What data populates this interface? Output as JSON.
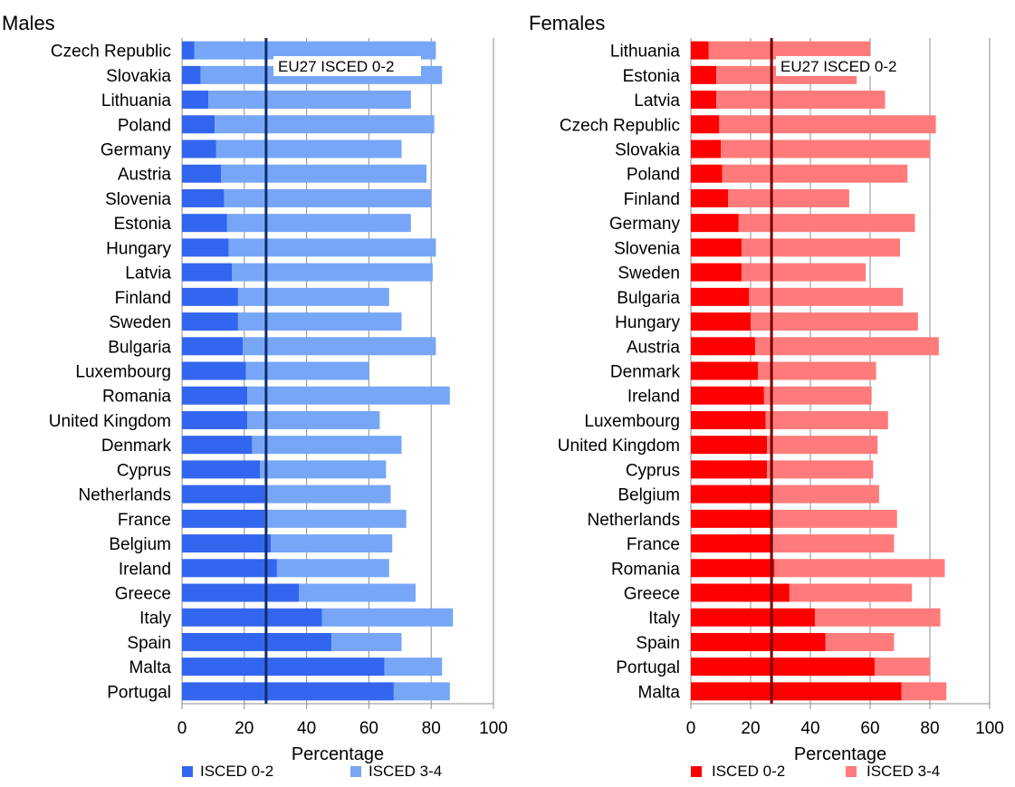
{
  "chart_data": [
    {
      "type": "bar",
      "orientation": "horizontal",
      "stacked": true,
      "title": "Males",
      "xlabel": "Percentage",
      "xlim": [
        0,
        100
      ],
      "xticks": [
        0,
        20,
        40,
        60,
        80,
        100
      ],
      "grid": true,
      "legend_position": "bottom",
      "categories": [
        "Czech Republic",
        "Slovakia",
        "Lithuania",
        "Poland",
        "Germany",
        "Austria",
        "Slovenia",
        "Estonia",
        "Hungary",
        "Latvia",
        "Finland",
        "Sweden",
        "Bulgaria",
        "Luxembourg",
        "Romania",
        "United Kingdom",
        "Denmark",
        "Cyprus",
        "Netherlands",
        "France",
        "Belgium",
        "Ireland",
        "Greece",
        "Italy",
        "Spain",
        "Malta",
        "Portugal"
      ],
      "series": [
        {
          "name": "ISCED 0-2",
          "color": "#3366ee",
          "values": [
            4,
            6,
            8.5,
            10.5,
            11,
            12.5,
            13.5,
            14.5,
            15,
            16,
            18,
            18,
            19.5,
            20.5,
            21,
            21,
            22.5,
            25,
            26.5,
            26.5,
            28.5,
            30.5,
            37.5,
            45,
            48,
            65,
            68
          ]
        },
        {
          "name": "ISCED 3-4",
          "color": "#77a6f7",
          "values": [
            77.5,
            77.5,
            65,
            70.5,
            59.5,
            66,
            66.5,
            59,
            66.5,
            64.5,
            48.5,
            52.5,
            62,
            39.5,
            65,
            42.5,
            48,
            40.5,
            40.5,
            45.5,
            39,
            36,
            37.5,
            42,
            22.5,
            18.5,
            18
          ]
        }
      ],
      "reference_line": {
        "label": "EU27 ISCED 0-2",
        "value": 27,
        "color": "#0d2e6b"
      }
    },
    {
      "type": "bar",
      "orientation": "horizontal",
      "stacked": true,
      "title": "Females",
      "xlabel": "Percentage",
      "xlim": [
        0,
        100
      ],
      "xticks": [
        0,
        20,
        40,
        60,
        80,
        100
      ],
      "grid": true,
      "legend_position": "bottom",
      "categories": [
        "Lithuania",
        "Estonia",
        "Latvia",
        "Czech Republic",
        "Slovakia",
        "Poland",
        "Finland",
        "Germany",
        "Slovenia",
        "Sweden",
        "Bulgaria",
        "Hungary",
        "Austria",
        "Denmark",
        "Ireland",
        "Luxembourg",
        "United Kingdom",
        "Cyprus",
        "Belgium",
        "Netherlands",
        "France",
        "Romania",
        "Greece",
        "Italy",
        "Spain",
        "Portugal",
        "Malta"
      ],
      "series": [
        {
          "name": "ISCED 0-2",
          "color": "#ff0000",
          "values": [
            6,
            8.5,
            8.5,
            9.5,
            10,
            10.5,
            12.5,
            16,
            17,
            17,
            19.5,
            20,
            21.5,
            22.5,
            24.5,
            25,
            25.5,
            25.5,
            27.5,
            27.5,
            27.5,
            28,
            33,
            41.5,
            45,
            61.5,
            70.5
          ]
        },
        {
          "name": "ISCED 3-4",
          "color": "#ff7b7b",
          "values": [
            54,
            47,
            56.5,
            72.5,
            70,
            62,
            40.5,
            59,
            53,
            41.5,
            51.5,
            56,
            61.5,
            39.5,
            36,
            41,
            37,
            35.5,
            35.5,
            41.5,
            40.5,
            57,
            41,
            42,
            23,
            18.5,
            15
          ]
        }
      ],
      "reference_line": {
        "label": "EU27 ISCED 0-2",
        "value": 27,
        "color": "#7a0000"
      }
    }
  ]
}
